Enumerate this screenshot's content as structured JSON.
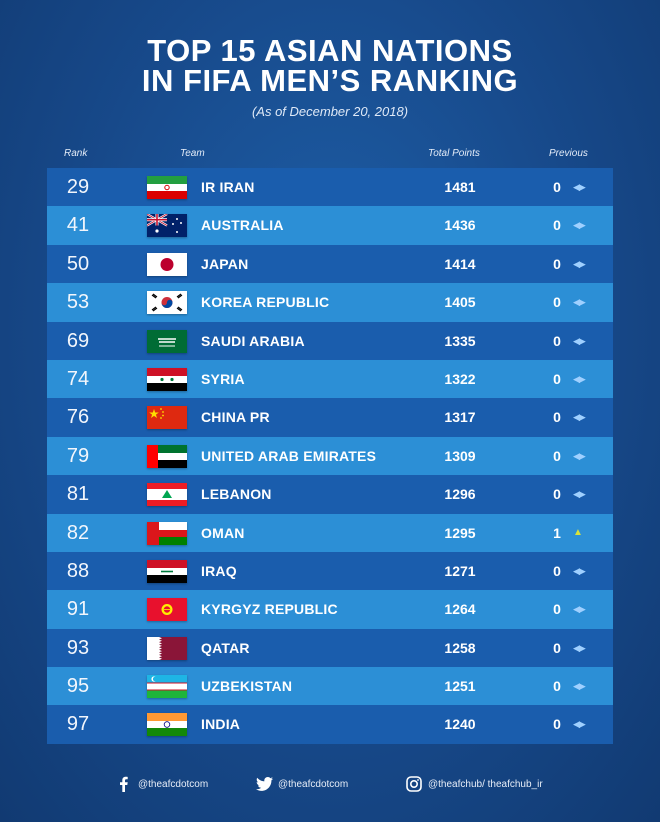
{
  "title_line1": "TOP 15 ASIAN NATIONS",
  "title_line2": "IN FIFA MEN’S  RANKING",
  "subtitle": "(As of December 20, 2018)",
  "headers": {
    "rank": "Rank",
    "team": "Team",
    "points": "Total Points",
    "previous": "Previous"
  },
  "rows": [
    {
      "rank": "29",
      "team": "IR IRAN",
      "points": "1481",
      "previous": "0",
      "move": "◀▶"
    },
    {
      "rank": "41",
      "team": "AUSTRALIA",
      "points": "1436",
      "previous": "0",
      "move": "◀▶"
    },
    {
      "rank": "50",
      "team": "JAPAN",
      "points": "1414",
      "previous": "0",
      "move": "◀▶"
    },
    {
      "rank": "53",
      "team": "KOREA REPUBLIC",
      "points": "1405",
      "previous": "0",
      "move": "◀▶"
    },
    {
      "rank": "69",
      "team": "SAUDI ARABIA",
      "points": "1335",
      "previous": "0",
      "move": "◀▶"
    },
    {
      "rank": "74",
      "team": "SYRIA",
      "points": "1322",
      "previous": "0",
      "move": "◀▶"
    },
    {
      "rank": "76",
      "team": "CHINA PR",
      "points": "1317",
      "previous": "0",
      "move": "◀▶"
    },
    {
      "rank": "79",
      "team": "UNITED ARAB EMIRATES",
      "points": "1309",
      "previous": "0",
      "move": "◀▶"
    },
    {
      "rank": "81",
      "team": "LEBANON",
      "points": "1296",
      "previous": "0",
      "move": "◀▶"
    },
    {
      "rank": "82",
      "team": "OMAN",
      "points": "1295",
      "previous": "1",
      "move": "▲"
    },
    {
      "rank": "88",
      "team": "IRAQ",
      "points": "1271",
      "previous": "0",
      "move": "◀▶"
    },
    {
      "rank": "91",
      "team": "KYRGYZ REPUBLIC",
      "points": "1264",
      "previous": "0",
      "move": "◀▶"
    },
    {
      "rank": "93",
      "team": "QATAR",
      "points": "1258",
      "previous": "0",
      "move": "◀▶"
    },
    {
      "rank": "95",
      "team": "UZBEKISTAN",
      "points": "1251",
      "previous": "0",
      "move": "◀▶"
    },
    {
      "rank": "97",
      "team": "INDIA",
      "points": "1240",
      "previous": "0",
      "move": "◀▶"
    }
  ],
  "footer": {
    "facebook": "@theafcdotcom",
    "twitter": "@theafcdotcom",
    "instagram": "@theafchub/ theafchub_ir"
  },
  "colors": {
    "row_dark": "#1a5dad",
    "row_light": "#2c8fd6",
    "arrow_same": "#9fd0ff",
    "arrow_up": "#d8e23a"
  }
}
